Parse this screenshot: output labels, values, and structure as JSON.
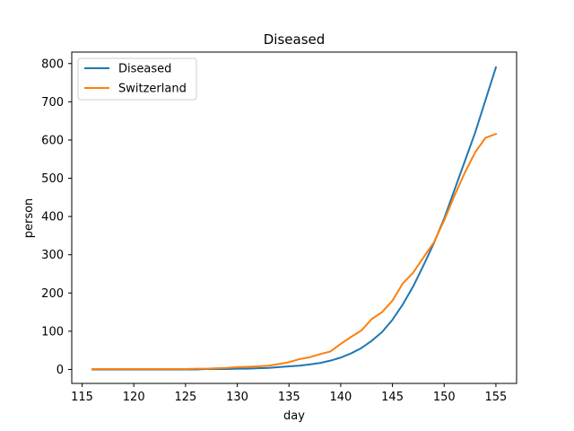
{
  "chart_data": {
    "type": "line",
    "title": "Diseased",
    "xlabel": "day",
    "ylabel": "person",
    "xlim": [
      114,
      157
    ],
    "ylim": [
      -36.5,
      830
    ],
    "xticks": [
      115,
      120,
      125,
      130,
      135,
      140,
      145,
      150,
      155
    ],
    "yticks": [
      0,
      100,
      200,
      300,
      400,
      500,
      600,
      700,
      800
    ],
    "grid": false,
    "legend_position": "top-left",
    "series": [
      {
        "name": "Diseased",
        "color": "#1f77b4",
        "x": [
          116,
          117,
          118,
          119,
          120,
          121,
          122,
          123,
          124,
          125,
          126,
          127,
          128,
          129,
          130,
          131,
          132,
          133,
          134,
          135,
          136,
          137,
          138,
          139,
          140,
          141,
          142,
          143,
          144,
          145,
          146,
          147,
          148,
          149,
          150,
          151,
          152,
          153,
          154,
          155
        ],
        "y": [
          0,
          0,
          0,
          0,
          0,
          0,
          0,
          0,
          0,
          0,
          0,
          1,
          1,
          1,
          2,
          2,
          3,
          4,
          6,
          8,
          10,
          13,
          17,
          23,
          31,
          42,
          56,
          75,
          98,
          130,
          170,
          217,
          272,
          330,
          395,
          470,
          545,
          620,
          705,
          790
        ]
      },
      {
        "name": "Switzerland",
        "color": "#ff7f0e",
        "x": [
          116,
          117,
          118,
          119,
          120,
          121,
          122,
          123,
          124,
          125,
          126,
          127,
          128,
          129,
          130,
          131,
          132,
          133,
          134,
          135,
          136,
          137,
          138,
          139,
          140,
          141,
          142,
          143,
          144,
          145,
          146,
          147,
          148,
          149,
          150,
          151,
          152,
          153,
          154,
          155
        ],
        "y": [
          1,
          1,
          1,
          1,
          1,
          1,
          1,
          1,
          1,
          1,
          2,
          2,
          3,
          4,
          6,
          7,
          8,
          10,
          14,
          19,
          27,
          32,
          40,
          47,
          67,
          85,
          102,
          132,
          150,
          180,
          225,
          253,
          293,
          332,
          390,
          455,
          515,
          568,
          606,
          616
        ]
      }
    ]
  }
}
